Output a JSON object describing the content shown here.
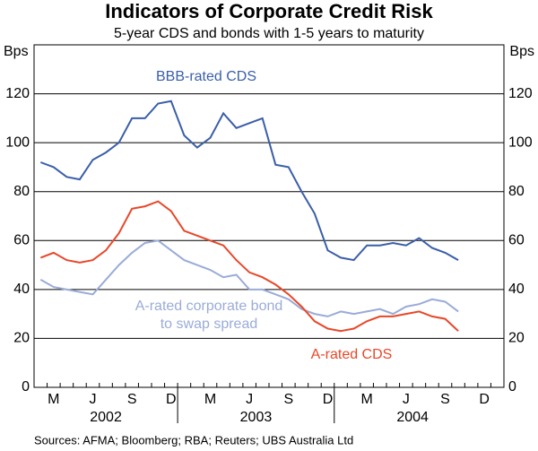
{
  "chart_data": {
    "type": "line",
    "title": "Indicators of Corporate Credit Risk",
    "subtitle": "5-year CDS and bonds with 1-5 years to maturity",
    "y_label": "Bps",
    "source": "Sources: AFMA; Bloomberg; RBA; Reuters; UBS Australia Ltd",
    "categories": [
      null,
      "M",
      null,
      null,
      "J",
      null,
      null,
      "S",
      null,
      null,
      "D",
      null,
      null,
      "M",
      null,
      null,
      "J",
      null,
      null,
      "S",
      null,
      null,
      "D",
      null,
      null,
      "M",
      null,
      null,
      "J",
      null,
      null,
      "S",
      null,
      null,
      "D",
      null
    ],
    "x_groups": [
      "2002",
      "2003",
      "2004"
    ],
    "ylim": [
      0,
      140
    ],
    "yticks": [
      0,
      20,
      40,
      60,
      80,
      100,
      120
    ],
    "grid": true,
    "series": [
      {
        "name": "BBB-rated CDS",
        "color": "#3a5ea8",
        "values": [
          92,
          90,
          86,
          85,
          93,
          96,
          100,
          110,
          110,
          116,
          117,
          103,
          98,
          102,
          112,
          106,
          108,
          110,
          91,
          90,
          80,
          71,
          56,
          53,
          52,
          58,
          58,
          59,
          58,
          61,
          57,
          55,
          52,
          null,
          null,
          null
        ]
      },
      {
        "name": "A-rated corporate bond to swap spread",
        "color": "#9aabd8",
        "values": [
          44,
          41,
          40,
          39,
          38,
          44,
          50,
          55,
          59,
          60,
          56,
          52,
          50,
          48,
          45,
          46,
          40,
          40,
          38,
          36,
          32,
          30,
          29,
          31,
          30,
          31,
          32,
          30,
          33,
          34,
          36,
          35,
          31,
          null,
          null,
          null
        ]
      },
      {
        "name": "A-rated CDS",
        "color": "#e8472a",
        "values": [
          53,
          55,
          52,
          51,
          52,
          56,
          63,
          73,
          74,
          76,
          72,
          64,
          62,
          60,
          58,
          52,
          47,
          45,
          42,
          38,
          33,
          27,
          24,
          23,
          24,
          27,
          29,
          29,
          30,
          31,
          29,
          28,
          23,
          null,
          null,
          null
        ]
      }
    ]
  }
}
